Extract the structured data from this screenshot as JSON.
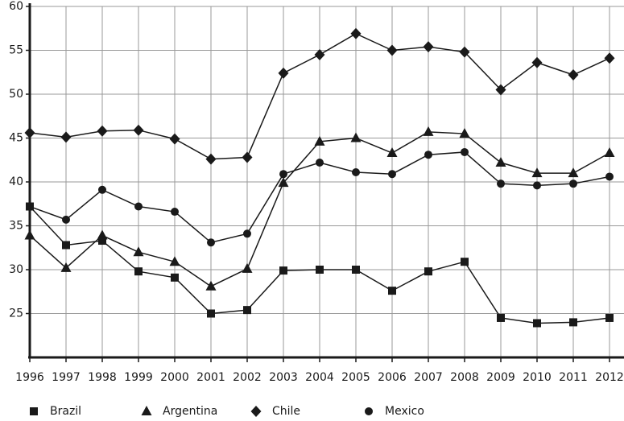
{
  "chart_data": {
    "type": "line",
    "x": [
      1996,
      1997,
      1998,
      1999,
      2000,
      2001,
      2002,
      2003,
      2004,
      2005,
      2006,
      2007,
      2008,
      2009,
      2010,
      2011,
      2012
    ],
    "xlim": [
      1996,
      2012
    ],
    "xticks": [
      1996,
      1997,
      1998,
      1999,
      2000,
      2001,
      2002,
      2003,
      2004,
      2005,
      2006,
      2007,
      2008,
      2009,
      2010,
      2011,
      2012
    ],
    "ylim": [
      20,
      60
    ],
    "yticks": [
      25,
      30,
      35,
      40,
      45,
      50,
      55,
      60
    ],
    "grid": true,
    "legend": "bottom",
    "series": [
      {
        "name": "Brazil",
        "color": "#1a1a1a",
        "marker": "square",
        "values": [
          37.2,
          32.8,
          33.3,
          29.8,
          29.1,
          25.0,
          25.4,
          29.9,
          30.0,
          30.0,
          27.6,
          29.8,
          30.9,
          24.5,
          23.9,
          24.0,
          24.5
        ]
      },
      {
        "name": "Argentina",
        "color": "#1a1a1a",
        "marker": "triangle",
        "values": [
          33.9,
          30.2,
          33.9,
          32.0,
          30.9,
          28.1,
          30.1,
          39.9,
          44.6,
          45.0,
          43.3,
          45.7,
          45.5,
          42.2,
          41.0,
          41.0,
          43.3
        ]
      },
      {
        "name": "Chile",
        "color": "#1a1a1a",
        "marker": "diamond",
        "values": [
          45.6,
          45.1,
          45.8,
          45.9,
          44.9,
          42.6,
          42.8,
          52.4,
          54.5,
          56.9,
          55.0,
          55.4,
          54.8,
          50.5,
          53.6,
          52.2,
          54.1
        ]
      },
      {
        "name": "Mexico",
        "color": "#1a1a1a",
        "marker": "circle",
        "values": [
          37.2,
          35.7,
          39.1,
          37.2,
          36.6,
          33.1,
          34.1,
          40.9,
          42.2,
          41.1,
          40.9,
          43.1,
          43.4,
          39.8,
          39.6,
          39.8,
          40.6
        ]
      }
    ]
  }
}
